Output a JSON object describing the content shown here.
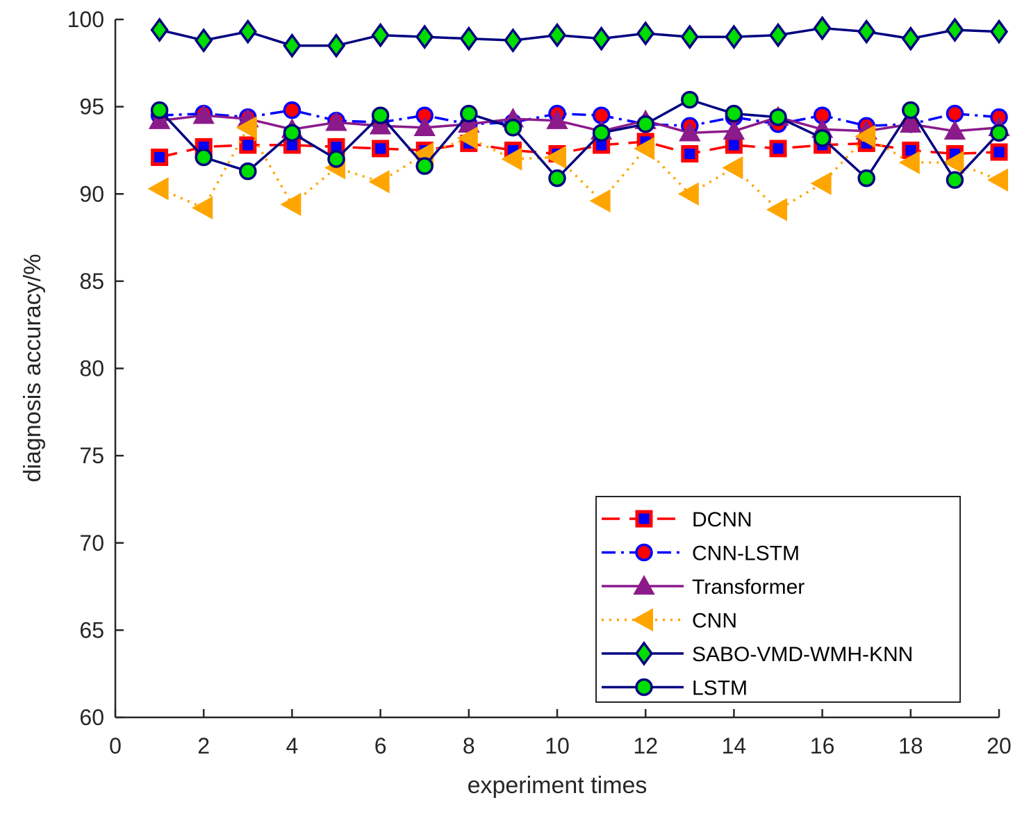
{
  "chart_data": {
    "type": "line",
    "title": "",
    "xlabel": "experiment times",
    "ylabel": "diagnosis accuracy/%",
    "xlim": [
      0,
      20
    ],
    "ylim": [
      60,
      100
    ],
    "xticks": [
      0,
      2,
      4,
      6,
      8,
      10,
      12,
      14,
      16,
      18,
      20
    ],
    "yticks": [
      60,
      65,
      70,
      75,
      80,
      85,
      90,
      95,
      100
    ],
    "legend_position": "bottom-right",
    "x": [
      1,
      2,
      3,
      4,
      5,
      6,
      7,
      8,
      9,
      10,
      11,
      12,
      13,
      14,
      15,
      16,
      17,
      18,
      19,
      20
    ],
    "series": [
      {
        "name": "DCNN",
        "line_color": "#ff0000",
        "dash": "dashed",
        "marker": "square",
        "marker_fill": "#0000ff",
        "marker_edge": "#ff0000",
        "values": [
          92.1,
          92.7,
          92.8,
          92.8,
          92.7,
          92.6,
          92.5,
          92.9,
          92.5,
          92.3,
          92.8,
          93.0,
          92.3,
          92.8,
          92.6,
          92.8,
          92.9,
          92.5,
          92.3,
          92.4
        ]
      },
      {
        "name": "CNN-LSTM",
        "line_color": "#0000ff",
        "dash": "dashdot",
        "marker": "circle",
        "marker_fill": "#ff0000",
        "marker_edge": "#0000ff",
        "values": [
          94.5,
          94.6,
          94.4,
          94.8,
          94.2,
          94.1,
          94.5,
          94.0,
          94.1,
          94.6,
          94.5,
          94.0,
          93.9,
          94.4,
          94.0,
          94.5,
          93.9,
          94.0,
          94.6,
          94.4
        ]
      },
      {
        "name": "Transformer",
        "line_color": "#8b1a8b",
        "dash": "solid",
        "marker": "triangle-up",
        "marker_fill": "#8b1a8b",
        "marker_edge": "#8b1a8b",
        "values": [
          94.2,
          94.5,
          94.3,
          93.7,
          94.1,
          93.9,
          93.8,
          94.0,
          94.3,
          94.2,
          93.6,
          94.2,
          93.5,
          93.6,
          94.4,
          93.7,
          93.6,
          94.0,
          93.6,
          93.8
        ]
      },
      {
        "name": "CNN",
        "line_color": "#ffa500",
        "dash": "dotted",
        "marker": "triangle-left",
        "marker_fill": "#ffa500",
        "marker_edge": "#ffa500",
        "values": [
          90.3,
          89.2,
          93.8,
          89.4,
          91.5,
          90.7,
          92.3,
          93.2,
          92.0,
          92.1,
          89.6,
          92.6,
          90.0,
          91.5,
          89.1,
          90.6,
          93.3,
          91.8,
          91.8,
          90.8
        ]
      },
      {
        "name": "SABO-VMD-WMH-KNN",
        "line_color": "#000080",
        "dash": "solid",
        "marker": "diamond",
        "marker_fill": "#00dd00",
        "marker_edge": "#000080",
        "values": [
          99.4,
          98.8,
          99.3,
          98.5,
          98.5,
          99.1,
          99.0,
          98.9,
          98.8,
          99.1,
          98.9,
          99.2,
          99.0,
          99.0,
          99.1,
          99.5,
          99.3,
          98.9,
          99.4,
          99.3
        ]
      },
      {
        "name": "LSTM",
        "line_color": "#000080",
        "dash": "solid",
        "marker": "circle",
        "marker_fill": "#00dd00",
        "marker_edge": "#000080",
        "values": [
          94.8,
          92.1,
          91.3,
          93.5,
          92.0,
          94.5,
          91.6,
          94.6,
          93.8,
          90.9,
          93.5,
          94.0,
          95.4,
          94.6,
          94.4,
          93.2,
          90.9,
          94.8,
          90.8,
          93.5
        ]
      }
    ]
  }
}
